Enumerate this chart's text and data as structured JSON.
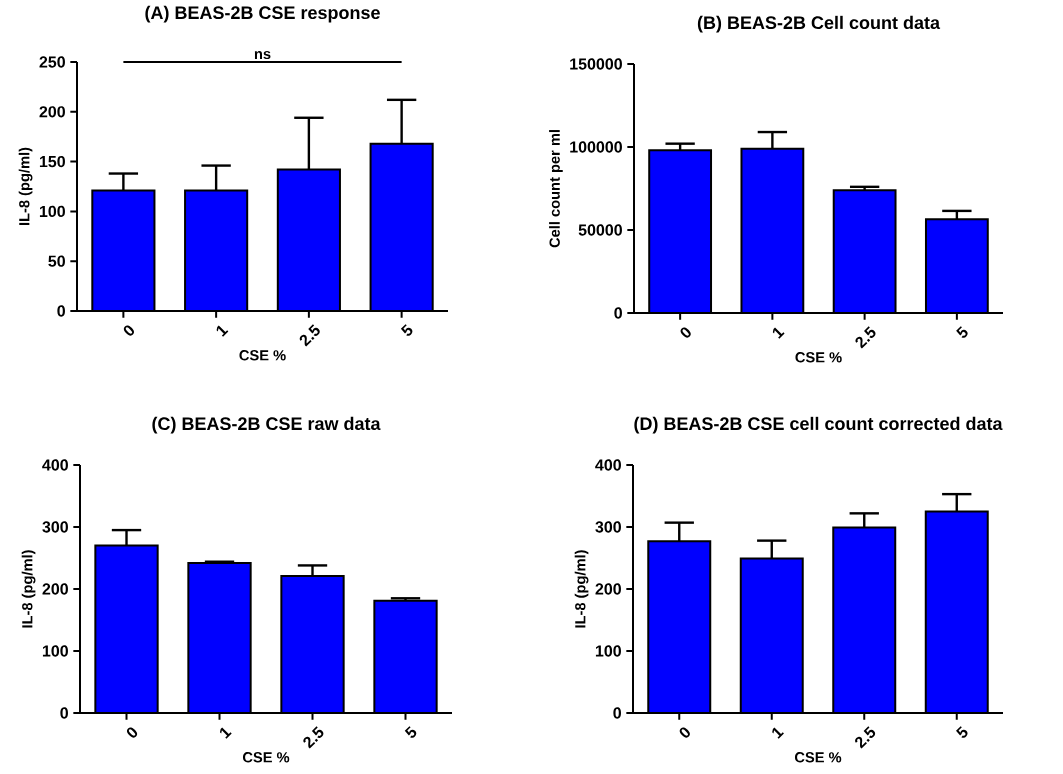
{
  "chart_data": [
    {
      "type": "bar",
      "title": "(A) BEAS-2B CSE response",
      "xlabel": "CSE %",
      "ylabel": "IL-8 (pg/ml)",
      "categories": [
        "0",
        "1",
        "2.5",
        "5"
      ],
      "values": [
        121,
        121,
        142,
        168
      ],
      "errors": [
        [
          121,
          138
        ],
        [
          121,
          146
        ],
        [
          142,
          194
        ],
        [
          168,
          212
        ]
      ],
      "color": "#0000ff",
      "ylim": [
        0,
        250
      ],
      "yticks": [
        0,
        50,
        100,
        150,
        200,
        250
      ],
      "annotations": [
        "ns"
      ]
    },
    {
      "type": "bar",
      "title": "(B) BEAS-2B Cell count data",
      "xlabel": "CSE %",
      "ylabel": "Cell count per ml",
      "categories": [
        "0",
        "1",
        "2.5",
        "5"
      ],
      "values": [
        98000,
        99000,
        74000,
        56500
      ],
      "errors": [
        [
          98000,
          102000
        ],
        [
          99000,
          109000
        ],
        [
          74000,
          76000
        ],
        [
          56500,
          61500
        ]
      ],
      "color": "#0000ff",
      "ylim": [
        0,
        150000
      ],
      "yticks": [
        0,
        50000,
        100000,
        150000
      ]
    },
    {
      "type": "bar",
      "title": "(C) BEAS-2B CSE raw data",
      "xlabel": "CSE %",
      "ylabel": "IL-8 (pg/ml)",
      "categories": [
        "0",
        "1",
        "2.5",
        "5"
      ],
      "values": [
        270,
        242,
        221,
        181
      ],
      "errors": [
        [
          270,
          295
        ],
        [
          242,
          244
        ],
        [
          221,
          238
        ],
        [
          181,
          185
        ]
      ],
      "color": "#0000ff",
      "ylim": [
        0,
        400
      ],
      "yticks": [
        0,
        100,
        200,
        300,
        400
      ]
    },
    {
      "type": "bar",
      "title": "(D) BEAS-2B CSE cell count corrected data",
      "xlabel": "CSE %",
      "ylabel": "IL-8 (pg/ml)",
      "categories": [
        "0",
        "1",
        "2.5",
        "5"
      ],
      "values": [
        277,
        249,
        299,
        325
      ],
      "errors": [
        [
          277,
          307
        ],
        [
          249,
          278
        ],
        [
          299,
          322
        ],
        [
          325,
          353
        ]
      ],
      "color": "#0000ff",
      "ylim": [
        0,
        400
      ],
      "yticks": [
        0,
        100,
        200,
        300,
        400
      ]
    }
  ]
}
